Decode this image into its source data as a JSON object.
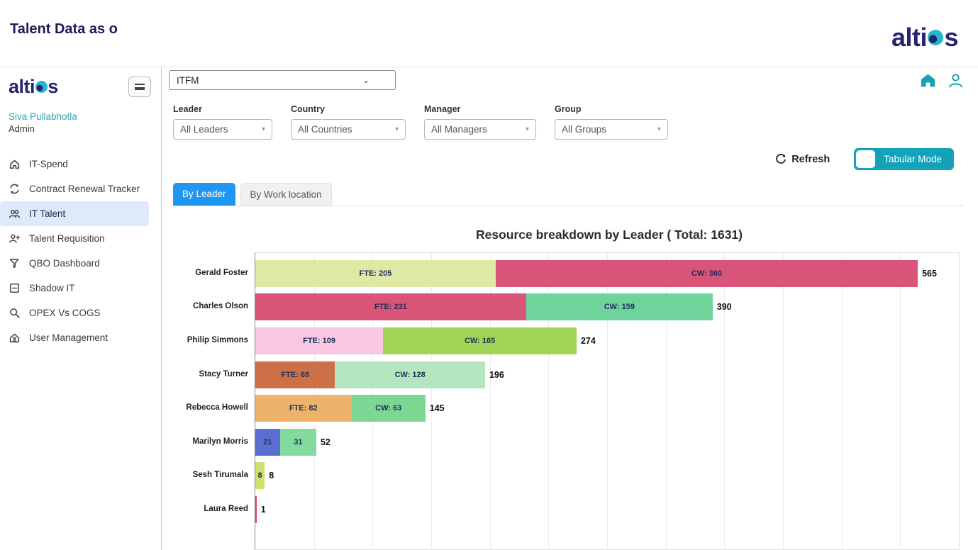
{
  "header": {
    "title": "Talent Data as o",
    "brand_prefix": "alti",
    "brand_suffix": "s"
  },
  "topbar": {
    "module_value": "ITFM"
  },
  "sidebar": {
    "brand_prefix": "alti",
    "brand_suffix": "s",
    "user_name": "Siva Pullabhotla",
    "user_role": "Admin",
    "items": [
      {
        "label": "IT-Spend",
        "icon": "home-icon",
        "active": false
      },
      {
        "label": "Contract Renewal Tracker",
        "icon": "renewal-arrows-icon",
        "active": false
      },
      {
        "label": "IT Talent",
        "icon": "users-icon",
        "active": true
      },
      {
        "label": "Talent Requisition",
        "icon": "user-plus-icon",
        "active": false
      },
      {
        "label": "QBO Dashboard",
        "icon": "funnel-icon",
        "active": false
      },
      {
        "label": "Shadow IT",
        "icon": "minus-square-icon",
        "active": false
      },
      {
        "label": "OPEX Vs COGS",
        "icon": "magnifier-icon",
        "active": false
      },
      {
        "label": "User Management",
        "icon": "user-home-icon",
        "active": false
      }
    ]
  },
  "filters": [
    {
      "label": "Leader",
      "value": "All Leaders"
    },
    {
      "label": "Country",
      "value": "All Countries"
    },
    {
      "label": "Manager",
      "value": "All Managers"
    },
    {
      "label": "Group",
      "value": "All Groups"
    }
  ],
  "actions": {
    "refresh_label": "Refresh",
    "tabular_mode_label": "Tabular Mode"
  },
  "tabs": [
    {
      "label": "By Leader",
      "active": true
    },
    {
      "label": "By Work location",
      "active": false
    }
  ],
  "chart_data": {
    "type": "bar",
    "orientation": "horizontal",
    "stacked": true,
    "title": "Resource breakdown by Leader ( Total: 1631)",
    "grand_total": 1631,
    "xlim": [
      0,
      600
    ],
    "gridline_interval": 50,
    "grid": true,
    "categories": [
      "Gerald Foster",
      "Charles Olson",
      "Philip Simmons",
      "Stacy Turner",
      "Rebecca Howell",
      "Marilyn Morris",
      "Sesh Tirumala",
      "Laura Reed"
    ],
    "rows": [
      {
        "category": "Gerald Foster",
        "total": 565,
        "segments": [
          {
            "label": "FTE: 205",
            "value": 205,
            "color": "#dde9a5"
          },
          {
            "label": "CW: 360",
            "value": 360,
            "color": "#d85479"
          }
        ]
      },
      {
        "category": "Charles Olson",
        "total": 390,
        "segments": [
          {
            "label": "FTE: 231",
            "value": 231,
            "color": "#d85479"
          },
          {
            "label": "CW: 159",
            "value": 159,
            "color": "#6fd49b"
          }
        ]
      },
      {
        "category": "Philip Simmons",
        "total": 274,
        "segments": [
          {
            "label": "FTE: 109",
            "value": 109,
            "color": "#f8c7e2"
          },
          {
            "label": "CW: 165",
            "value": 165,
            "color": "#a0d455"
          }
        ]
      },
      {
        "category": "Stacy Turner",
        "total": 196,
        "segments": [
          {
            "label": "FTE: 68",
            "value": 68,
            "color": "#cd7048"
          },
          {
            "label": "CW: 128",
            "value": 128,
            "color": "#b4e6c0"
          }
        ]
      },
      {
        "category": "Rebecca Howell",
        "total": 145,
        "segments": [
          {
            "label": "FTE: 82",
            "value": 82,
            "color": "#eeb36a"
          },
          {
            "label": "CW: 63",
            "value": 63,
            "color": "#7cd694"
          }
        ]
      },
      {
        "category": "Marilyn Morris",
        "total": 52,
        "segments": [
          {
            "label": "21",
            "value": 21,
            "color": "#5a6fd1"
          },
          {
            "label": "31",
            "value": 31,
            "color": "#83da9e"
          }
        ]
      },
      {
        "category": "Sesh Tirumala",
        "total": 8,
        "segments": [
          {
            "label": "8",
            "value": 8,
            "color": "#cfe26a"
          }
        ]
      },
      {
        "category": "Laura Reed",
        "total": 1,
        "segments": [
          {
            "label": "",
            "value": 1,
            "color": "#d84a63"
          }
        ]
      }
    ]
  }
}
